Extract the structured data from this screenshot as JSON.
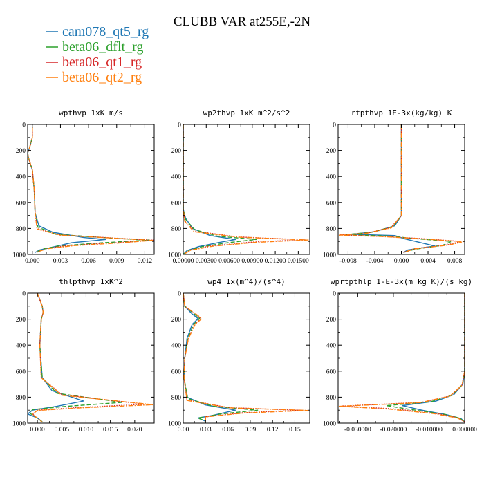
{
  "figure": {
    "title": "CLUBB VAR at255E,-2N"
  },
  "legend": [
    {
      "name": "cam078_qt5_rg",
      "color": "#1f77b4",
      "dash": "solid"
    },
    {
      "name": "beta06_dflt_rg",
      "color": "#2ca02c",
      "dash": "dashed"
    },
    {
      "name": "beta06_qt1_rg",
      "color": "#d62728",
      "dash": "dotted"
    },
    {
      "name": "beta06_qt2_rg",
      "color": "#ff7f0e",
      "dash": "dashdot"
    }
  ],
  "chart_data": [
    {
      "type": "line",
      "title": "wpthvp  1xK m/s",
      "xlim": [
        -0.0005,
        0.013
      ],
      "ylim": [
        1000,
        0
      ],
      "xticks": [
        0,
        0.003,
        0.006,
        0.009,
        0.012
      ],
      "xticklabels": [
        "0.000",
        "0.003",
        "0.006",
        "0.009",
        "0.012"
      ],
      "yticks": [
        0,
        200,
        400,
        600,
        800,
        1000
      ],
      "yticklabels": [
        "0",
        "200",
        "400",
        "600",
        "800",
        "1000"
      ],
      "series": [
        {
          "x": [
            0.0,
            0.0,
            -0.0003,
            -0.0005,
            -0.0004,
            0.0,
            0.0002,
            0.0003,
            0.0007,
            0.0022,
            0.0055,
            0.0078,
            0.0042,
            0.0018,
            0.0008,
            0.0003
          ],
          "y": [
            20,
            100,
            180,
            220,
            260,
            350,
            500,
            680,
            780,
            830,
            870,
            885,
            910,
            950,
            965,
            985
          ]
        },
        {
          "x": [
            0.0,
            0.0,
            -0.0003,
            -0.0005,
            -0.0004,
            0.0,
            0.0002,
            0.0003,
            0.0006,
            0.0025,
            0.0085,
            0.0125,
            0.0075,
            0.0028,
            0.001,
            0.0004
          ],
          "y": [
            20,
            100,
            180,
            220,
            260,
            350,
            500,
            680,
            790,
            845,
            875,
            890,
            910,
            935,
            960,
            985
          ]
        },
        {
          "x": [
            0.0,
            0.0,
            -0.0003,
            -0.0005,
            -0.0004,
            0.0,
            0.0002,
            0.0003,
            0.0005,
            0.0028,
            0.009,
            0.013,
            0.009,
            0.004,
            0.0015,
            0.0004
          ],
          "y": [
            20,
            100,
            180,
            220,
            260,
            350,
            500,
            680,
            800,
            850,
            875,
            890,
            910,
            930,
            955,
            985
          ]
        },
        {
          "x": [
            0.0,
            0.0,
            -0.0003,
            -0.0005,
            -0.0004,
            0.0,
            0.0002,
            0.0003,
            0.0005,
            0.003,
            0.0092,
            0.0128,
            0.0092,
            0.0045,
            0.0015,
            0.0004
          ],
          "y": [
            20,
            100,
            180,
            220,
            260,
            350,
            500,
            680,
            805,
            852,
            877,
            892,
            912,
            932,
            957,
            985
          ]
        }
      ]
    },
    {
      "type": "line",
      "title": "wp2thvp  1xK m^2/s^2",
      "xlim": [
        0,
        0.0165
      ],
      "ylim": [
        1000,
        0
      ],
      "xticks": [
        0,
        0.003,
        0.006,
        0.009,
        0.012,
        0.015
      ],
      "xticklabels": [
        "0.00000",
        "0.00300",
        "0.00600",
        "0.00900",
        "0.01200",
        "0.01500"
      ],
      "yticks": [
        0,
        200,
        400,
        600,
        800,
        1000
      ],
      "yticklabels": [
        "0",
        "200",
        "400",
        "600",
        "800",
        "1000"
      ],
      "series": [
        {
          "x": [
            0.0,
            0.0,
            0.0003,
            0.0012,
            0.0035,
            0.0068,
            0.0045,
            0.002,
            0.0005,
            0.0
          ],
          "y": [
            0,
            650,
            720,
            800,
            855,
            885,
            910,
            940,
            970,
            1000
          ]
        },
        {
          "x": [
            0.0,
            0.0,
            0.0003,
            0.0015,
            0.0045,
            0.0095,
            0.0058,
            0.0025,
            0.0006,
            0.0
          ],
          "y": [
            0,
            650,
            730,
            810,
            860,
            885,
            910,
            940,
            970,
            1000
          ]
        },
        {
          "x": [
            0.0,
            0.0,
            0.0002,
            0.0015,
            0.007,
            0.0158,
            0.009,
            0.0035,
            0.001,
            0.0
          ],
          "y": [
            0,
            650,
            740,
            820,
            865,
            887,
            905,
            935,
            965,
            1000
          ]
        },
        {
          "x": [
            0.0,
            0.0,
            0.0002,
            0.0014,
            0.0072,
            0.0163,
            0.0095,
            0.0038,
            0.001,
            0.0
          ],
          "y": [
            0,
            650,
            745,
            825,
            867,
            889,
            907,
            937,
            967,
            1000
          ]
        }
      ]
    },
    {
      "type": "line",
      "title": "rtpthvp  1E-3x(kg/kg) K",
      "xlim": [
        -0.0095,
        0.0095
      ],
      "ylim": [
        1000,
        0
      ],
      "xticks": [
        -0.008,
        -0.004,
        0,
        0.004,
        0.008
      ],
      "xticklabels": [
        "-0.008",
        "-0.004",
        "0.000",
        "0.004",
        "0.008"
      ],
      "yticks": [
        0,
        200,
        400,
        600,
        800,
        1000
      ],
      "yticklabels": [
        "0",
        "200",
        "400",
        "600",
        "800",
        "1000"
      ],
      "series": [
        {
          "x": [
            0.0,
            0.0,
            -0.001,
            -0.004,
            -0.0075,
            -0.001,
            0.0005,
            0.0025,
            0.005,
            0.001,
            0.0003
          ],
          "y": [
            0,
            700,
            780,
            825,
            845,
            855,
            880,
            905,
            935,
            965,
            985
          ]
        },
        {
          "x": [
            0.0,
            0.0,
            -0.0012,
            -0.0045,
            -0.0085,
            -0.002,
            0.002,
            0.0075,
            0.0062,
            0.002,
            0.0003
          ],
          "y": [
            0,
            700,
            785,
            830,
            848,
            858,
            878,
            900,
            930,
            960,
            985
          ]
        },
        {
          "x": [
            0.0,
            0.0,
            -0.0015,
            -0.005,
            -0.0092,
            -0.003,
            0.003,
            0.009,
            0.007,
            0.002,
            0.0003
          ],
          "y": [
            0,
            700,
            790,
            835,
            850,
            860,
            878,
            900,
            925,
            955,
            985
          ]
        },
        {
          "x": [
            0.0,
            0.0,
            -0.0015,
            -0.0052,
            -0.0093,
            -0.003,
            0.003,
            0.0093,
            0.0072,
            0.002,
            0.0003
          ],
          "y": [
            0,
            700,
            795,
            838,
            852,
            862,
            880,
            902,
            927,
            957,
            985
          ]
        }
      ]
    },
    {
      "type": "line",
      "title": "thlpthvp  1xK^2",
      "xlim": [
        -0.002,
        0.024
      ],
      "ylim": [
        1000,
        0
      ],
      "xticks": [
        0,
        0.005,
        0.01,
        0.015,
        0.02
      ],
      "xticklabels": [
        "0.000",
        "0.005",
        "0.010",
        "0.015",
        "0.020"
      ],
      "yticks": [
        0,
        200,
        400,
        600,
        800,
        1000
      ],
      "yticklabels": [
        "0",
        "200",
        "400",
        "600",
        "800",
        "1000"
      ],
      "series": [
        {
          "x": [
            0.0,
            0.0005,
            0.001,
            0.0012,
            0.0008,
            0.0005,
            0.001,
            0.003,
            0.0095,
            0.004,
            -0.001,
            -0.002,
            0.0,
            0.001
          ],
          "y": [
            0,
            50,
            100,
            150,
            200,
            400,
            650,
            750,
            830,
            870,
            900,
            930,
            960,
            990
          ]
        },
        {
          "x": [
            0.0,
            0.0005,
            0.001,
            0.0012,
            0.0008,
            0.0005,
            0.001,
            0.004,
            0.0175,
            0.006,
            -0.001,
            -0.0015,
            0.0,
            0.001
          ],
          "y": [
            0,
            50,
            100,
            150,
            200,
            400,
            650,
            770,
            840,
            870,
            895,
            925,
            960,
            990
          ]
        },
        {
          "x": [
            0.0,
            0.0005,
            0.001,
            0.0012,
            0.0008,
            0.0005,
            0.0008,
            0.005,
            0.022,
            0.008,
            0.0,
            -0.001,
            0.0,
            0.001
          ],
          "y": [
            0,
            50,
            100,
            150,
            200,
            400,
            650,
            780,
            855,
            880,
            900,
            930,
            960,
            990
          ]
        },
        {
          "x": [
            0.0,
            0.0005,
            0.001,
            0.0012,
            0.0008,
            0.0005,
            0.0008,
            0.005,
            0.0238,
            0.009,
            0.0,
            -0.001,
            0.0,
            0.001
          ],
          "y": [
            0,
            50,
            100,
            150,
            200,
            400,
            650,
            785,
            858,
            882,
            902,
            932,
            962,
            992
          ]
        }
      ]
    },
    {
      "type": "line",
      "title": "wp4  1x(m^4)/(s^4)",
      "xlim": [
        0,
        0.17
      ],
      "ylim": [
        1000,
        0
      ],
      "xticks": [
        0,
        0.03,
        0.06,
        0.09,
        0.12,
        0.15
      ],
      "xticklabels": [
        "0.00",
        "0.03",
        "0.06",
        "0.09",
        "0.12",
        "0.15"
      ],
      "yticks": [
        0,
        200,
        400,
        600,
        800,
        1000
      ],
      "yticklabels": [
        "0",
        "200",
        "400",
        "600",
        "800",
        "1000"
      ],
      "series": [
        {
          "x": [
            0.0,
            0.001,
            0.002,
            0.012,
            0.02,
            0.012,
            0.005,
            0.002,
            0.001,
            0.005,
            0.03,
            0.07,
            0.04,
            0.02,
            0.03
          ],
          "y": [
            0,
            50,
            100,
            160,
            195,
            240,
            350,
            500,
            650,
            800,
            860,
            900,
            940,
            960,
            985
          ]
        },
        {
          "x": [
            0.0,
            0.001,
            0.002,
            0.015,
            0.022,
            0.014,
            0.006,
            0.002,
            0.001,
            0.006,
            0.04,
            0.1,
            0.05,
            0.02,
            0.03
          ],
          "y": [
            0,
            50,
            100,
            160,
            195,
            240,
            350,
            500,
            650,
            810,
            870,
            900,
            930,
            960,
            985
          ]
        },
        {
          "x": [
            0.0,
            0.001,
            0.002,
            0.016,
            0.024,
            0.015,
            0.007,
            0.002,
            0.001,
            0.005,
            0.06,
            0.155,
            0.08,
            0.03,
            0.03
          ],
          "y": [
            0,
            50,
            100,
            160,
            195,
            240,
            350,
            500,
            650,
            820,
            880,
            900,
            920,
            950,
            985
          ]
        },
        {
          "x": [
            0.0,
            0.001,
            0.002,
            0.017,
            0.025,
            0.016,
            0.007,
            0.002,
            0.001,
            0.005,
            0.062,
            0.168,
            0.082,
            0.03,
            0.03
          ],
          "y": [
            0,
            50,
            100,
            160,
            195,
            240,
            350,
            500,
            650,
            825,
            882,
            902,
            922,
            952,
            985
          ]
        }
      ]
    },
    {
      "type": "line",
      "title": "wprtpthlp  1-E-3x(m kg K)/(s kg)",
      "xlim": [
        -0.0355,
        0
      ],
      "ylim": [
        1000,
        0
      ],
      "xticks": [
        -0.03,
        -0.02,
        -0.01,
        0
      ],
      "xticklabels": [
        "-0.030000",
        "-0.020000",
        "-0.010000",
        "0.000000"
      ],
      "yticks": [
        0,
        200,
        400,
        600,
        800,
        1000
      ],
      "yticklabels": [
        "0",
        "200",
        "400",
        "600",
        "800",
        "1000"
      ],
      "series": [
        {
          "x": [
            0.0,
            0.0,
            -0.0005,
            -0.003,
            -0.008,
            -0.0175,
            -0.012,
            -0.005,
            -0.001,
            0.0
          ],
          "y": [
            0,
            600,
            700,
            780,
            830,
            865,
            900,
            935,
            965,
            990
          ]
        },
        {
          "x": [
            0.0,
            0.0,
            -0.0006,
            -0.0035,
            -0.0095,
            -0.022,
            -0.015,
            -0.006,
            -0.0015,
            0.0
          ],
          "y": [
            0,
            600,
            700,
            785,
            835,
            865,
            895,
            930,
            960,
            990
          ]
        },
        {
          "x": [
            0.0,
            0.0,
            -0.0007,
            -0.004,
            -0.012,
            -0.0345,
            -0.02,
            -0.008,
            -0.002,
            0.0
          ],
          "y": [
            0,
            600,
            705,
            790,
            840,
            868,
            890,
            925,
            958,
            990
          ]
        },
        {
          "x": [
            0.0,
            0.0,
            -0.0007,
            -0.0042,
            -0.0125,
            -0.035,
            -0.021,
            -0.0085,
            -0.002,
            0.0
          ],
          "y": [
            0,
            600,
            708,
            793,
            842,
            870,
            892,
            927,
            960,
            990
          ]
        }
      ]
    }
  ]
}
